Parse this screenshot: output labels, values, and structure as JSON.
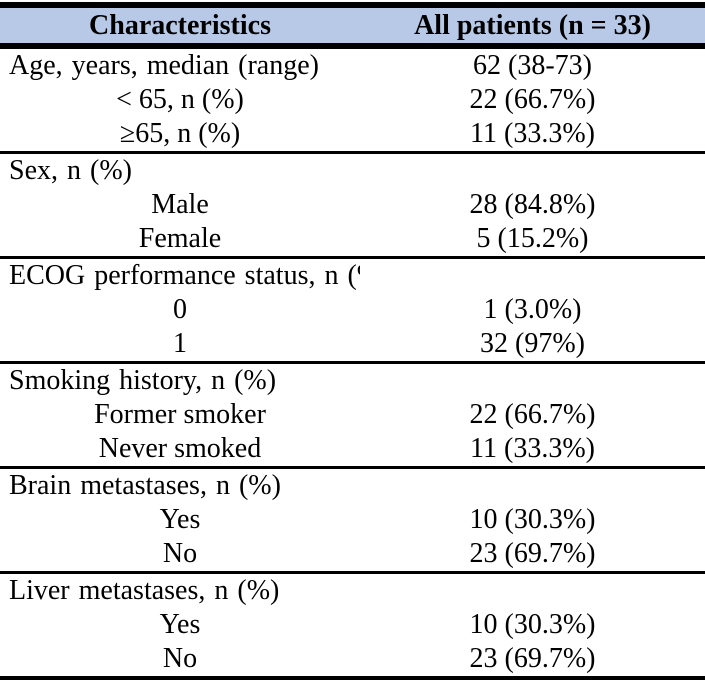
{
  "table": {
    "header": {
      "col1": "Characteristics",
      "col2": "All patients (n = 33)"
    },
    "sections": [
      {
        "rows": [
          {
            "label": "Age, years, median (range)",
            "value": "62 (38-73)",
            "indent": false
          },
          {
            "label": "< 65, n (%)",
            "value": "22 (66.7%)",
            "indent": true
          },
          {
            "label": "≥65, n (%)",
            "value": "11 (33.3%)",
            "indent": true
          }
        ]
      },
      {
        "rows": [
          {
            "label": "Sex, n (%)",
            "value": "",
            "indent": false
          },
          {
            "label": "Male",
            "value": "28 (84.8%)",
            "indent": true
          },
          {
            "label": "Female",
            "value": "5 (15.2%)",
            "indent": true
          }
        ]
      },
      {
        "rows": [
          {
            "label": "ECOG performance status, n (%)",
            "value": "",
            "indent": false
          },
          {
            "label": "0",
            "value": "1 (3.0%)",
            "indent": true
          },
          {
            "label": "1",
            "value": "32 (97%)",
            "indent": true
          }
        ]
      },
      {
        "rows": [
          {
            "label": "Smoking history, n (%)",
            "value": "",
            "indent": false
          },
          {
            "label": "Former smoker",
            "value": "22 (66.7%)",
            "indent": true
          },
          {
            "label": "Never smoked",
            "value": "11 (33.3%)",
            "indent": true
          }
        ]
      },
      {
        "rows": [
          {
            "label": "Brain metastases, n (%)",
            "value": "",
            "indent": false
          },
          {
            "label": "Yes",
            "value": "10 (30.3%)",
            "indent": true
          },
          {
            "label": "No",
            "value": "23 (69.7%)",
            "indent": true
          }
        ]
      },
      {
        "rows": [
          {
            "label": "Liver metastases, n (%)",
            "value": "",
            "indent": false
          },
          {
            "label": "Yes",
            "value": "10 (30.3%)",
            "indent": true
          },
          {
            "label": "No",
            "value": "23 (69.7%)",
            "indent": true
          }
        ]
      }
    ],
    "colors": {
      "header_bg": "#b7c9e6",
      "border": "#000000",
      "text": "#000000"
    }
  }
}
